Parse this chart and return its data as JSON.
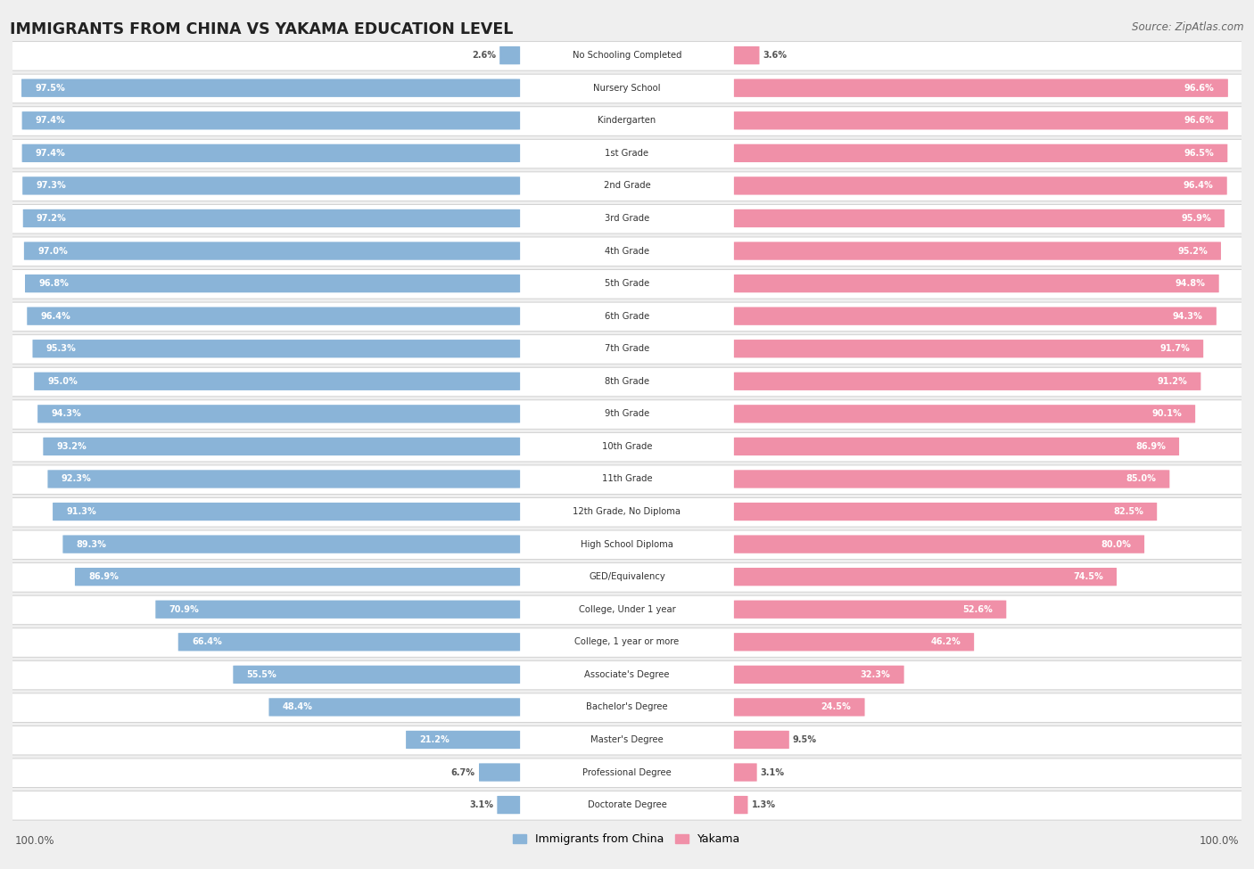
{
  "title": "IMMIGRANTS FROM CHINA VS YAKAMA EDUCATION LEVEL",
  "source": "Source: ZipAtlas.com",
  "categories": [
    "No Schooling Completed",
    "Nursery School",
    "Kindergarten",
    "1st Grade",
    "2nd Grade",
    "3rd Grade",
    "4th Grade",
    "5th Grade",
    "6th Grade",
    "7th Grade",
    "8th Grade",
    "9th Grade",
    "10th Grade",
    "11th Grade",
    "12th Grade, No Diploma",
    "High School Diploma",
    "GED/Equivalency",
    "College, Under 1 year",
    "College, 1 year or more",
    "Associate's Degree",
    "Bachelor's Degree",
    "Master's Degree",
    "Professional Degree",
    "Doctorate Degree"
  ],
  "china_values": [
    2.6,
    97.5,
    97.4,
    97.4,
    97.3,
    97.2,
    97.0,
    96.8,
    96.4,
    95.3,
    95.0,
    94.3,
    93.2,
    92.3,
    91.3,
    89.3,
    86.9,
    70.9,
    66.4,
    55.5,
    48.4,
    21.2,
    6.7,
    3.1
  ],
  "yakama_values": [
    3.6,
    96.6,
    96.6,
    96.5,
    96.4,
    95.9,
    95.2,
    94.8,
    94.3,
    91.7,
    91.2,
    90.1,
    86.9,
    85.0,
    82.5,
    80.0,
    74.5,
    52.6,
    46.2,
    32.3,
    24.5,
    9.5,
    3.1,
    1.3
  ],
  "china_color": "#8ab4d8",
  "yakama_color": "#f090a8",
  "bg_color": "#efefef",
  "row_bg_color": "#ffffff",
  "row_alt_bg_color": "#f7f7f7",
  "title_color": "#222222",
  "label_color": "#444444",
  "value_color_white": "#ffffff",
  "value_color_dark": "#555555",
  "legend_china": "Immigrants from China",
  "legend_yakama": "Yakama"
}
